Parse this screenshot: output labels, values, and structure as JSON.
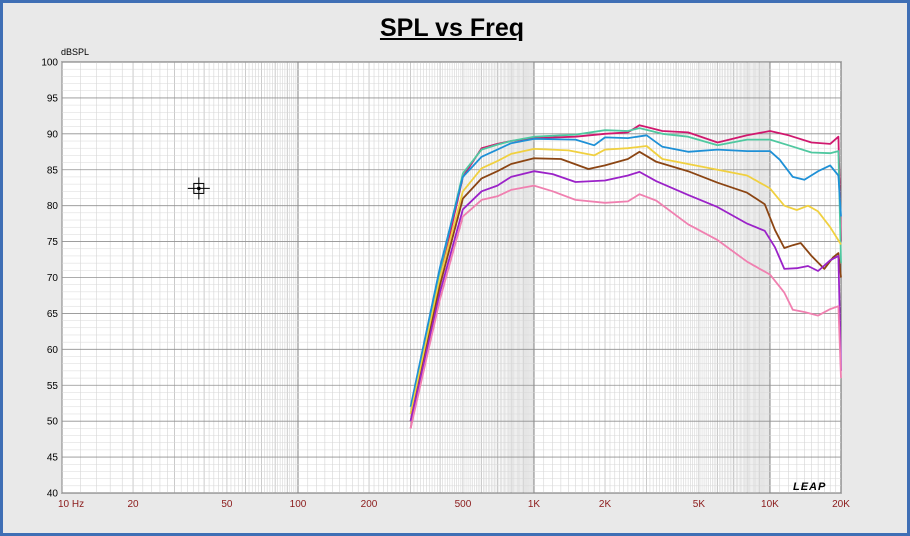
{
  "window": {
    "border_color": "#3f6fb5",
    "background": "#e9e9e9"
  },
  "chart_data": {
    "type": "line",
    "title": "SPL vs Freq",
    "ylabel": "dBSPL",
    "xlabel": "",
    "x_scale": "log",
    "xlim": [
      10,
      20000
    ],
    "ylim": [
      40,
      100
    ],
    "grid": true,
    "brand_label": "LEAP",
    "y_ticks": [
      "100",
      "95",
      "90",
      "85",
      "80",
      "75",
      "70",
      "65",
      "60",
      "55",
      "50",
      "45",
      "40"
    ],
    "x_ticks": [
      {
        "f": 10,
        "label": "10  Hz"
      },
      {
        "f": 20,
        "label": "20"
      },
      {
        "f": 50,
        "label": "50"
      },
      {
        "f": 100,
        "label": "100"
      },
      {
        "f": 200,
        "label": "200"
      },
      {
        "f": 500,
        "label": "500"
      },
      {
        "f": 1000,
        "label": "1K"
      },
      {
        "f": 2000,
        "label": "2K"
      },
      {
        "f": 5000,
        "label": "5K"
      },
      {
        "f": 10000,
        "label": "10K"
      },
      {
        "f": 20000,
        "label": "20K"
      }
    ],
    "cursor": {
      "f": 38,
      "db": 82.4
    },
    "series": [
      {
        "color": "#d0186e",
        "points": [
          [
            300,
            49
          ],
          [
            400,
            70
          ],
          [
            500,
            84
          ],
          [
            600,
            88
          ],
          [
            700,
            88.6
          ],
          [
            800,
            89
          ],
          [
            1000,
            89.4
          ],
          [
            1500,
            89.6
          ],
          [
            2000,
            90
          ],
          [
            2500,
            90.2
          ],
          [
            2800,
            91.2
          ],
          [
            3500,
            90.4
          ],
          [
            4500,
            90.2
          ],
          [
            6000,
            88.8
          ],
          [
            8000,
            89.8
          ],
          [
            10000,
            90.4
          ],
          [
            12000,
            89.8
          ],
          [
            15000,
            88.8
          ],
          [
            18000,
            88.6
          ],
          [
            19500,
            89.6
          ],
          [
            20000,
            75
          ]
        ]
      },
      {
        "color": "#4fc8a0",
        "points": [
          [
            300,
            51
          ],
          [
            400,
            71
          ],
          [
            500,
            84.5
          ],
          [
            600,
            87.8
          ],
          [
            700,
            88.5
          ],
          [
            800,
            89
          ],
          [
            1000,
            89.6
          ],
          [
            1500,
            89.9
          ],
          [
            2000,
            90.5
          ],
          [
            2500,
            90.4
          ],
          [
            2800,
            90.8
          ],
          [
            3500,
            90
          ],
          [
            4500,
            89.6
          ],
          [
            6000,
            88.4
          ],
          [
            8000,
            89.2
          ],
          [
            10000,
            89.2
          ],
          [
            12000,
            88.4
          ],
          [
            15000,
            87.4
          ],
          [
            18000,
            87.3
          ],
          [
            19500,
            87.6
          ],
          [
            20000,
            72
          ]
        ]
      },
      {
        "color": "#1e90d6",
        "points": [
          [
            300,
            52
          ],
          [
            400,
            71.5
          ],
          [
            500,
            84
          ],
          [
            600,
            86.8
          ],
          [
            700,
            87.8
          ],
          [
            800,
            88.7
          ],
          [
            1000,
            89.3
          ],
          [
            1500,
            89.2
          ],
          [
            1800,
            88.4
          ],
          [
            2000,
            89.5
          ],
          [
            2500,
            89.4
          ],
          [
            3000,
            89.8
          ],
          [
            3500,
            88.2
          ],
          [
            4500,
            87.5
          ],
          [
            6000,
            87.8
          ],
          [
            8000,
            87.6
          ],
          [
            10000,
            87.6
          ],
          [
            11000,
            86.4
          ],
          [
            12500,
            84
          ],
          [
            14000,
            83.6
          ],
          [
            16000,
            84.8
          ],
          [
            18000,
            85.6
          ],
          [
            19500,
            84.2
          ],
          [
            20000,
            78.5
          ]
        ]
      },
      {
        "color": "#f0d040",
        "points": [
          [
            300,
            51
          ],
          [
            400,
            70
          ],
          [
            500,
            82
          ],
          [
            600,
            85.2
          ],
          [
            700,
            86.2
          ],
          [
            800,
            87.2
          ],
          [
            1000,
            87.9
          ],
          [
            1400,
            87.7
          ],
          [
            1800,
            87
          ],
          [
            2000,
            87.8
          ],
          [
            2500,
            88
          ],
          [
            3000,
            88.3
          ],
          [
            3500,
            86.5
          ],
          [
            4500,
            85.8
          ],
          [
            6000,
            85
          ],
          [
            8000,
            84.2
          ],
          [
            10000,
            82.4
          ],
          [
            11500,
            80
          ],
          [
            13000,
            79.4
          ],
          [
            14500,
            80
          ],
          [
            16000,
            79.2
          ],
          [
            18000,
            77
          ],
          [
            20000,
            74.6
          ]
        ]
      },
      {
        "color": "#8b4513",
        "points": [
          [
            300,
            50
          ],
          [
            400,
            69
          ],
          [
            500,
            81
          ],
          [
            600,
            83.8
          ],
          [
            700,
            84.8
          ],
          [
            800,
            85.8
          ],
          [
            1000,
            86.6
          ],
          [
            1300,
            86.5
          ],
          [
            1700,
            85.1
          ],
          [
            2000,
            85.6
          ],
          [
            2500,
            86.5
          ],
          [
            2800,
            87.5
          ],
          [
            3300,
            86.1
          ],
          [
            4500,
            84.8
          ],
          [
            6000,
            83.2
          ],
          [
            8000,
            81.8
          ],
          [
            9500,
            80.2
          ],
          [
            10500,
            76.6
          ],
          [
            11500,
            74.1
          ],
          [
            12500,
            74.5
          ],
          [
            13500,
            74.8
          ],
          [
            15000,
            73
          ],
          [
            17000,
            71.2
          ],
          [
            18500,
            72.8
          ],
          [
            19500,
            73.4
          ],
          [
            20000,
            70
          ]
        ]
      },
      {
        "color": "#9b22c8",
        "points": [
          [
            300,
            50
          ],
          [
            400,
            68
          ],
          [
            500,
            79.5
          ],
          [
            600,
            82
          ],
          [
            700,
            82.8
          ],
          [
            800,
            84
          ],
          [
            1000,
            84.8
          ],
          [
            1200,
            84.4
          ],
          [
            1500,
            83.3
          ],
          [
            2000,
            83.5
          ],
          [
            2500,
            84.2
          ],
          [
            2800,
            84.7
          ],
          [
            3300,
            83.4
          ],
          [
            4500,
            81.5
          ],
          [
            6000,
            79.8
          ],
          [
            8000,
            77.5
          ],
          [
            9500,
            76.5
          ],
          [
            10500,
            74.2
          ],
          [
            11500,
            71.2
          ],
          [
            13000,
            71.3
          ],
          [
            14500,
            71.6
          ],
          [
            16000,
            70.9
          ],
          [
            18000,
            72.4
          ],
          [
            19500,
            73
          ],
          [
            20000,
            57
          ]
        ]
      },
      {
        "color": "#f080b0",
        "points": [
          [
            300,
            49
          ],
          [
            400,
            67
          ],
          [
            500,
            78.5
          ],
          [
            600,
            80.8
          ],
          [
            700,
            81.3
          ],
          [
            800,
            82.2
          ],
          [
            1000,
            82.8
          ],
          [
            1200,
            82
          ],
          [
            1500,
            80.8
          ],
          [
            2000,
            80.4
          ],
          [
            2500,
            80.6
          ],
          [
            2800,
            81.6
          ],
          [
            3300,
            80.7
          ],
          [
            4500,
            77.4
          ],
          [
            6000,
            75.2
          ],
          [
            8000,
            72.2
          ],
          [
            10000,
            70.4
          ],
          [
            11500,
            67.9
          ],
          [
            12500,
            65.5
          ],
          [
            14000,
            65.2
          ],
          [
            16000,
            64.7
          ],
          [
            18000,
            65.6
          ],
          [
            19500,
            66
          ],
          [
            20000,
            56
          ]
        ]
      }
    ]
  }
}
